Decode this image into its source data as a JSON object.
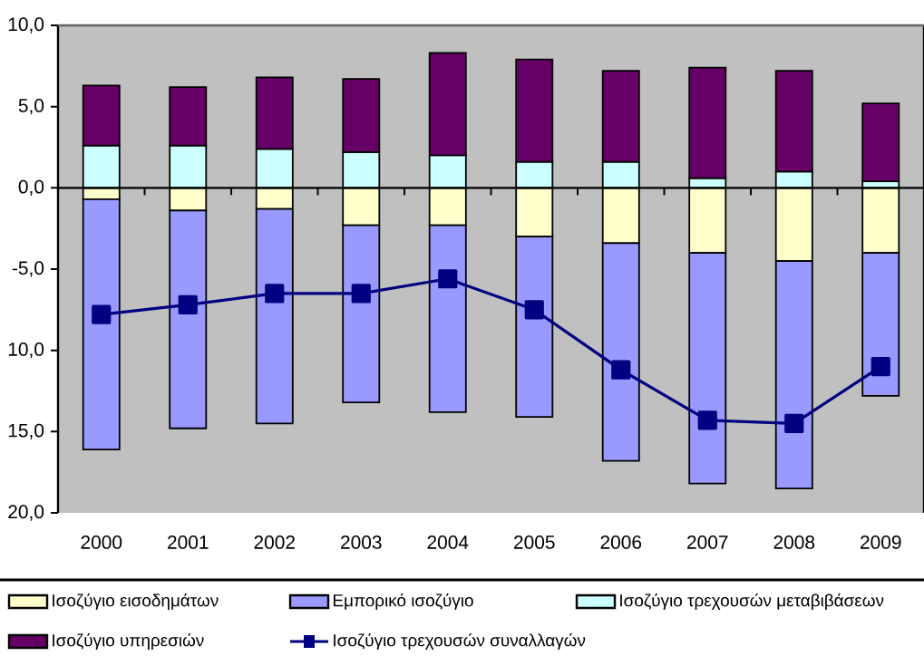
{
  "chart_data": {
    "type": "bar",
    "stacked": true,
    "categories": [
      "2000",
      "2001",
      "2002",
      "2003",
      "2004",
      "2005",
      "2006",
      "2007",
      "2008",
      "2009"
    ],
    "series": [
      {
        "name": "Ισοζύγιο εισοδημάτων",
        "color": "#ffffcc",
        "values": [
          -0.7,
          -1.4,
          -1.3,
          -2.3,
          -2.3,
          -3.0,
          -3.4,
          -4.0,
          -4.5,
          -4.0
        ]
      },
      {
        "name": "Εμπορικό ισοζύγιο",
        "color": "#9999ff",
        "values": [
          -15.4,
          -13.4,
          -13.2,
          -10.9,
          -11.5,
          -11.1,
          -13.4,
          -14.2,
          -14.0,
          -8.8
        ]
      },
      {
        "name": "Ισοζύγιο τρεχουσών μεταβιβάσεων",
        "color": "#ccffff",
        "values": [
          2.6,
          2.6,
          2.4,
          2.2,
          2.0,
          1.6,
          1.6,
          0.6,
          1.0,
          0.4
        ]
      },
      {
        "name": "Ισοζύγιο υπηρεσιών",
        "color": "#660066",
        "values": [
          3.7,
          3.6,
          4.4,
          4.5,
          6.3,
          6.3,
          5.6,
          6.8,
          6.2,
          4.8
        ]
      },
      {
        "name": "Ισοζύγιο τρεχουσών συναλλαγών",
        "type": "line",
        "color": "#000080",
        "marker": "square",
        "values": [
          -7.8,
          -7.2,
          -6.5,
          -6.5,
          -5.6,
          -7.5,
          -11.2,
          -14.3,
          -14.5,
          -11.0
        ]
      }
    ],
    "ylim": [
      -20,
      10
    ],
    "yticks": [
      {
        "value": -20,
        "label": "20,0"
      },
      {
        "value": -15,
        "label": "15,0"
      },
      {
        "value": -10,
        "label": "10,0"
      },
      {
        "value": -5,
        "label": "-5,0"
      },
      {
        "value": 0,
        "label": "0,0"
      },
      {
        "value": 5,
        "label": "5,0"
      },
      {
        "value": 10,
        "label": "10,0"
      }
    ],
    "legend": "bottom"
  }
}
